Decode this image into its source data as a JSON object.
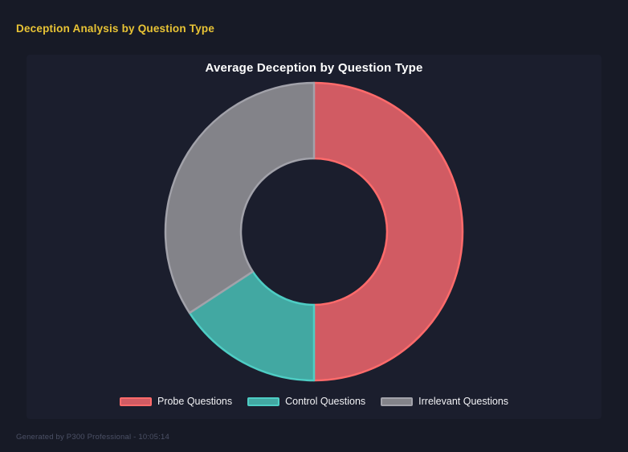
{
  "page": {
    "title": "Deception Analysis by Question Type",
    "footer": "Generated by P300 Professional - 10:05:14"
  },
  "colors": {
    "page_bg": "#171a26",
    "panel_bg": "#1b1e2d",
    "title_yellow": "#e9c435",
    "chart_title": "#ffffff",
    "footer_text": "#4c5166"
  },
  "chart_data": {
    "type": "pie",
    "subtype": "donut",
    "title": "Average Deception by Question Type",
    "legend_position": "bottom",
    "start_angle_deg": 0,
    "direction": "clockwise",
    "inner_radius_ratio": 0.49,
    "categories": [
      "Probe Questions",
      "Control Questions",
      "Irrelevant Questions"
    ],
    "values_percent": [
      50.0,
      15.8,
      34.2
    ],
    "segments": [
      {
        "label": "Probe Questions",
        "percent": 50.0,
        "fill": "#d15b63",
        "border": "#ff6b6b"
      },
      {
        "label": "Control Questions",
        "percent": 15.8,
        "fill": "#42a8a2",
        "border": "#4ecdc4"
      },
      {
        "label": "Irrelevant Questions",
        "percent": 34.2,
        "fill": "#838389",
        "border": "#a2a2aa"
      }
    ]
  }
}
